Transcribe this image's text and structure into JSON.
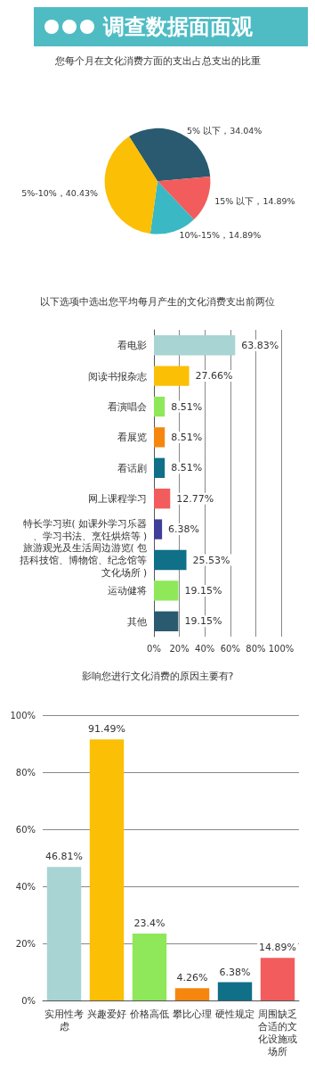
{
  "chart_data": [
    {
      "type": "pie",
      "title": "调查数据面面观",
      "subtitle": "您每个月在文化消费方面的支出占总支出的比重",
      "categories": [
        "5% 以下",
        "15% 以下",
        "10%-15%",
        "5%-10%"
      ],
      "values": [
        34.04,
        14.89,
        14.89,
        40.43
      ],
      "colors": [
        "#2a5a70",
        "#f25c5c",
        "#3ab8c4",
        "#fbbf05"
      ],
      "value_labels": [
        "34.04%",
        "14.89%",
        "14.89%",
        "40.43%"
      ]
    },
    {
      "type": "bar",
      "orientation": "horizontal",
      "title": "以下选项中选出您平均每月产生的文化消费支出前两位",
      "categories": [
        "看电影",
        "阅读书报杂志",
        "看演唱会",
        "看展览",
        "看话剧",
        "网上课程学习",
        "特长学习班( 如课外学习乐器、学习书法、烹饪烘焙等 )",
        "旅游观光及生活周边游览( 包括科技馆、博物馆、纪念馆等文化场所 )",
        "运动健将",
        "其他"
      ],
      "values": [
        63.83,
        27.66,
        8.51,
        8.51,
        8.51,
        12.77,
        6.38,
        25.53,
        19.15,
        19.15
      ],
      "colors": [
        "#a8d4d4",
        "#fbbf05",
        "#8ee85a",
        "#f7860f",
        "#0f7088",
        "#f25c5c",
        "#3f3f99",
        "#0f7088",
        "#8ee85a",
        "#2a5a70"
      ],
      "value_labels": [
        "63.83%",
        "27.66%",
        "8.51%",
        "8.51%",
        "8.51%",
        "12.77%",
        "6.38%",
        "25.53%",
        "19.15%",
        "19.15%"
      ],
      "xlim": [
        0,
        100
      ],
      "xticks": [
        {
          "value": 0,
          "label": "0%"
        },
        {
          "value": 20,
          "label": "20%"
        },
        {
          "value": 40,
          "label": "40%"
        },
        {
          "value": 60,
          "label": "60%"
        },
        {
          "value": 80,
          "label": "80%"
        },
        {
          "value": 100,
          "label": "100%"
        }
      ],
      "grid": "x"
    },
    {
      "type": "bar",
      "title": "影响您进行文化消费的原因主要有?",
      "categories": [
        "实用性考虑",
        "兴趣爱好",
        "价格高低",
        "攀比心理",
        "硬性规定",
        "周围缺乏合适的文化设施或场所"
      ],
      "values": [
        46.81,
        91.49,
        23.4,
        4.26,
        6.38,
        14.89
      ],
      "colors": [
        "#a8d4d4",
        "#fbbf05",
        "#8ee85a",
        "#f7860f",
        "#0f7088",
        "#f25c5c"
      ],
      "value_labels": [
        "46.81%",
        "91.49%",
        "23.4%",
        "4.26%",
        "6.38%",
        "14.89%"
      ],
      "ylim": [
        0,
        100
      ],
      "yticks": [
        {
          "value": 0,
          "label": "0%"
        },
        {
          "value": 20,
          "label": "20%"
        },
        {
          "value": 40,
          "label": "40%"
        },
        {
          "value": 60,
          "label": "60%"
        },
        {
          "value": 80,
          "label": "80%"
        },
        {
          "value": 100,
          "label": "100%"
        }
      ],
      "grid": "y"
    }
  ]
}
